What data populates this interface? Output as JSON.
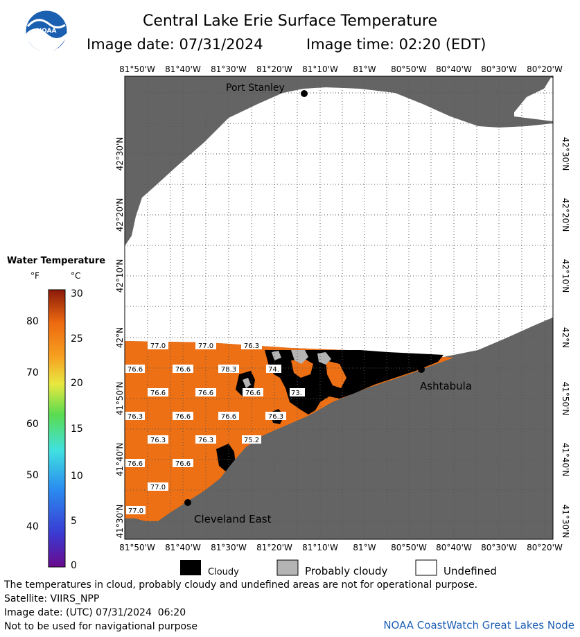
{
  "header": {
    "title": "Central Lake Erie Surface Temperature",
    "image_date": "Image date: 07/31/2024",
    "image_time": "Image time: 02:20 (EDT)",
    "logo_text": "NOAA"
  },
  "axes": {
    "lon_labels": [
      "81°50'W",
      "81°40'W",
      "81°30'W",
      "81°20'W",
      "81°10'W",
      "81°W",
      "80°50'W",
      "80°40'W",
      "80°30'W",
      "80°20'W"
    ],
    "lat_labels": [
      "42°30'N",
      "42°20'N",
      "42°10'N",
      "42°N",
      "41°50'N",
      "41°40'N",
      "41°30'N"
    ]
  },
  "places": {
    "port_stanley": "Port Stanley",
    "ashtabula": "Ashtabula",
    "cleveland_east": "Cleveland East"
  },
  "temperature_labels": [
    "77.0",
    "77.0",
    "76.3",
    "76.6",
    "76.6",
    "78.3",
    "74.",
    "76.6",
    "76.6",
    "76.6",
    "73.",
    "76.3",
    "76.6",
    "76.6",
    "76.3",
    "76.3",
    "76.3",
    "75.2",
    "76.6",
    "76.6",
    "77.0",
    "77.0"
  ],
  "colorbar": {
    "title": "Water Temperature",
    "unit_f": "°F",
    "unit_c": "°C",
    "f_ticks": [
      "80",
      "70",
      "60",
      "50",
      "40"
    ],
    "c_ticks": [
      "30",
      "25",
      "20",
      "15",
      "10",
      "5",
      "0"
    ]
  },
  "legend": {
    "cloudy": "Cloudy",
    "probably_cloudy": "Probably cloudy",
    "undefined": "Undefined"
  },
  "footer": {
    "note": "The temperatures in cloud, probably cloudy and undefined areas are not for operational purpose.",
    "satellite": "Satellite: VIIRS_NPP",
    "utc_date": "Image date: (UTC) 07/31/2024  06:20",
    "navigation": "Not to be used for navigational purpose",
    "credit": "NOAA CoastWatch Great Lakes Node"
  },
  "colors": {
    "land": "#646464",
    "water_warm": "#ee7014",
    "cloud": "#000000",
    "prob_cloud": "#b4b4b4",
    "undefined": "#ffffff",
    "credit": "#1e5fb4"
  }
}
